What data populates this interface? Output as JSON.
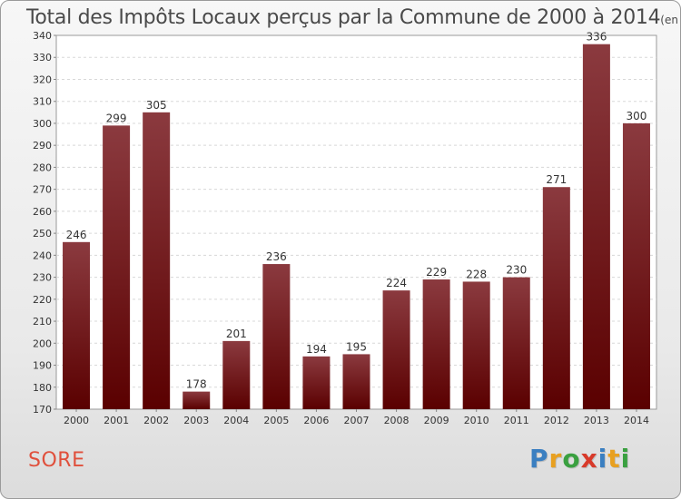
{
  "chart_data": {
    "type": "bar",
    "title": "Total des Impôts Locaux perçus par la Commune de 2000 à 2014",
    "title_unit": "(en milliers d'€)",
    "categories": [
      "2000",
      "2001",
      "2002",
      "2003",
      "2004",
      "2005",
      "2006",
      "2007",
      "2008",
      "2009",
      "2010",
      "2011",
      "2012",
      "2013",
      "2014"
    ],
    "values": [
      246,
      299,
      305,
      178,
      201,
      236,
      194,
      195,
      224,
      229,
      228,
      230,
      271,
      336,
      300
    ],
    "ylim": [
      170,
      340
    ],
    "ytick_step": 10,
    "xlabel": "",
    "ylabel": "",
    "grid": true,
    "bar_color_top": "#8b3a3f",
    "bar_color_bottom": "#5a0000"
  },
  "footer": {
    "commune": "SORE",
    "logo_letters": [
      {
        "ch": "P",
        "color": "#3a7fc1"
      },
      {
        "ch": "r",
        "color": "#e8a020"
      },
      {
        "ch": "o",
        "color": "#3aa040"
      },
      {
        "ch": "x",
        "color": "#d83a2a"
      },
      {
        "ch": "i",
        "color": "#3a7fc1"
      },
      {
        "ch": "t",
        "color": "#e8a020"
      },
      {
        "ch": "i",
        "color": "#3aa040"
      }
    ]
  }
}
